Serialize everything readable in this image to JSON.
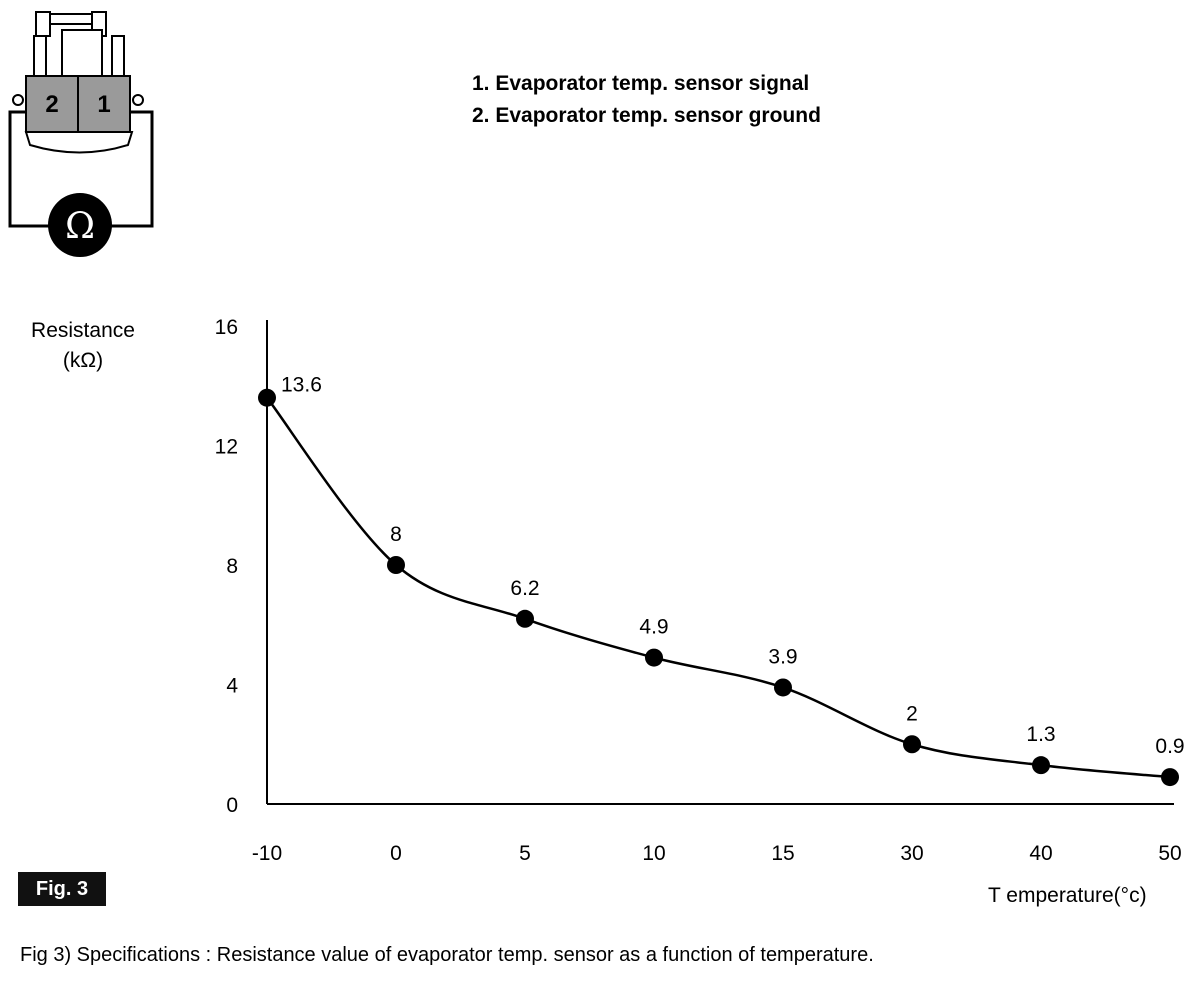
{
  "legend": {
    "items": [
      "1. Evaporator temp. sensor signal",
      "2. Evaporator temp. sensor ground"
    ]
  },
  "connector": {
    "pin_left": "2",
    "pin_right": "1",
    "meter_symbol": "Ω"
  },
  "figure_badge": "Fig. 3",
  "caption": "Fig 3) Specifications : Resistance value of evaporator temp. sensor as a function of temperature.",
  "chart_data": {
    "type": "line",
    "title": "",
    "ylabel_line1": "Resistance",
    "ylabel_line2": "(kΩ)",
    "xlabel": "T emperature(°c)",
    "categories": [
      "-10",
      "0",
      "5",
      "10",
      "15",
      "30",
      "40",
      "50"
    ],
    "values": [
      13.6,
      8,
      6.2,
      4.9,
      3.9,
      2,
      1.3,
      0.9
    ],
    "data_labels": [
      "13.6",
      "8",
      "6.2",
      "4.9",
      "3.9",
      "2",
      "1.3",
      "0.9"
    ],
    "yticks": [
      "0",
      "4",
      "8",
      "12",
      "16"
    ],
    "ylim": [
      0,
      16
    ],
    "grid": false,
    "legend": "none",
    "colors": {
      "line": "#000000",
      "marker": "#000000",
      "badge": "#111111"
    }
  }
}
